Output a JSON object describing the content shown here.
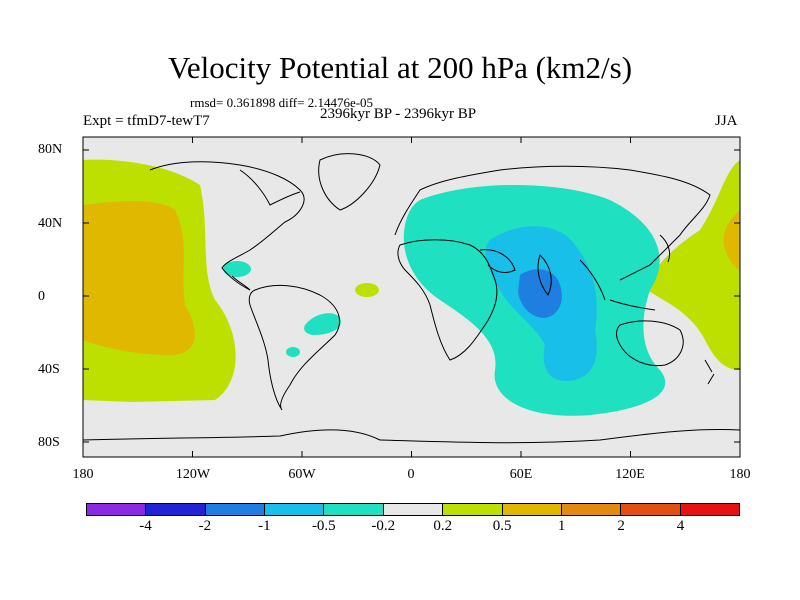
{
  "title": "Velocity Potential at 200 hPa (km2/s)",
  "stats": "rmsd= 0.361898 diff= 2.14476e-05",
  "experiment": "Expt = tfmD7-tewT7",
  "period": "2396kyr BP - 2396kyr BP",
  "season": "JJA",
  "lat_labels": [
    "80N",
    "40N",
    "0",
    "40S",
    "80S"
  ],
  "lon_labels": [
    "180",
    "120W",
    "60W",
    "0",
    "60E",
    "120E",
    "180"
  ],
  "colorbar": {
    "colors": [
      "#8a2be2",
      "#2323d6",
      "#1e7fe0",
      "#18bfe8",
      "#1fe0c0",
      "#e8e8e8",
      "#bde000",
      "#e0b800",
      "#e08a10",
      "#e05010",
      "#e81010"
    ],
    "labels": [
      "-4",
      "-2",
      "-1",
      "-0.5",
      "-0.2",
      "0.2",
      "0.5",
      "1",
      "2",
      "4"
    ]
  },
  "colors": {
    "background": "#e8e8e8",
    "coast": "#000000"
  }
}
